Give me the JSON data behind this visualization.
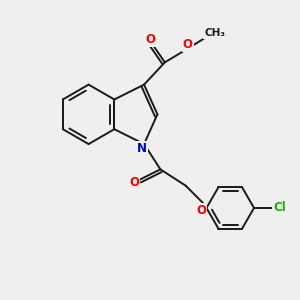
{
  "bg_color": "#efefef",
  "bond_color": "#1a1a1a",
  "bond_width": 1.4,
  "atom_colors": {
    "O": "#ff0000",
    "N": "#0000cc",
    "Cl": "#22aa00",
    "C": "#1a1a1a"
  },
  "font_size_atom": 8.5,
  "font_size_methyl": 7.5
}
